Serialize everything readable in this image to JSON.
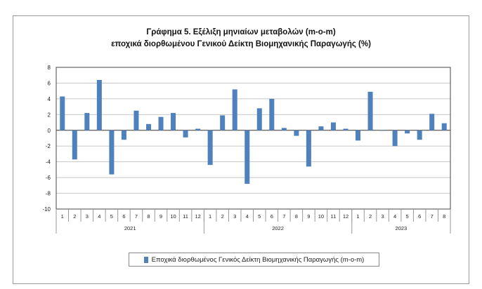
{
  "chart_data": {
    "type": "bar",
    "title": [
      "Γράφημα 5. Εξέλιξη μηνιαίων μεταβολών (m-o-m)",
      "εποχικά διορθωμένου Γενικού Δείκτη Βιομηχανικής Παραγωγής (%)"
    ],
    "years": [
      {
        "label": "2021",
        "months": 12
      },
      {
        "label": "2022",
        "months": 12
      },
      {
        "label": "2023",
        "months": 8
      }
    ],
    "categories": [
      "1",
      "2",
      "3",
      "4",
      "5",
      "6",
      "7",
      "8",
      "9",
      "10",
      "11",
      "12",
      "1",
      "2",
      "3",
      "4",
      "5",
      "6",
      "7",
      "8",
      "9",
      "10",
      "11",
      "12",
      "1",
      "2",
      "3",
      "4",
      "5",
      "6",
      "7",
      "8"
    ],
    "series": [
      {
        "name": "Εποχικά διορθωμένος Γενικός Δείκτη Βιομηχανικής Παραγωγής (m-o-m)",
        "color": "#4f81bd",
        "values": [
          4.3,
          -3.7,
          2.2,
          6.4,
          -5.6,
          -1.2,
          2.5,
          0.8,
          1.7,
          2.2,
          -0.9,
          0.2,
          -4.4,
          1.9,
          5.2,
          -6.8,
          2.8,
          4.0,
          0.3,
          -0.7,
          -4.6,
          0.5,
          1.0,
          0.2,
          -1.3,
          4.9,
          0.0,
          -2.0,
          -0.4,
          -1.2,
          2.1,
          0.9
        ]
      }
    ],
    "ylim": [
      -10,
      8
    ],
    "yticks": [
      8,
      6,
      4,
      2,
      0,
      -2,
      -4,
      -6,
      -8,
      -10
    ],
    "grid": true,
    "legend": "bottom"
  }
}
